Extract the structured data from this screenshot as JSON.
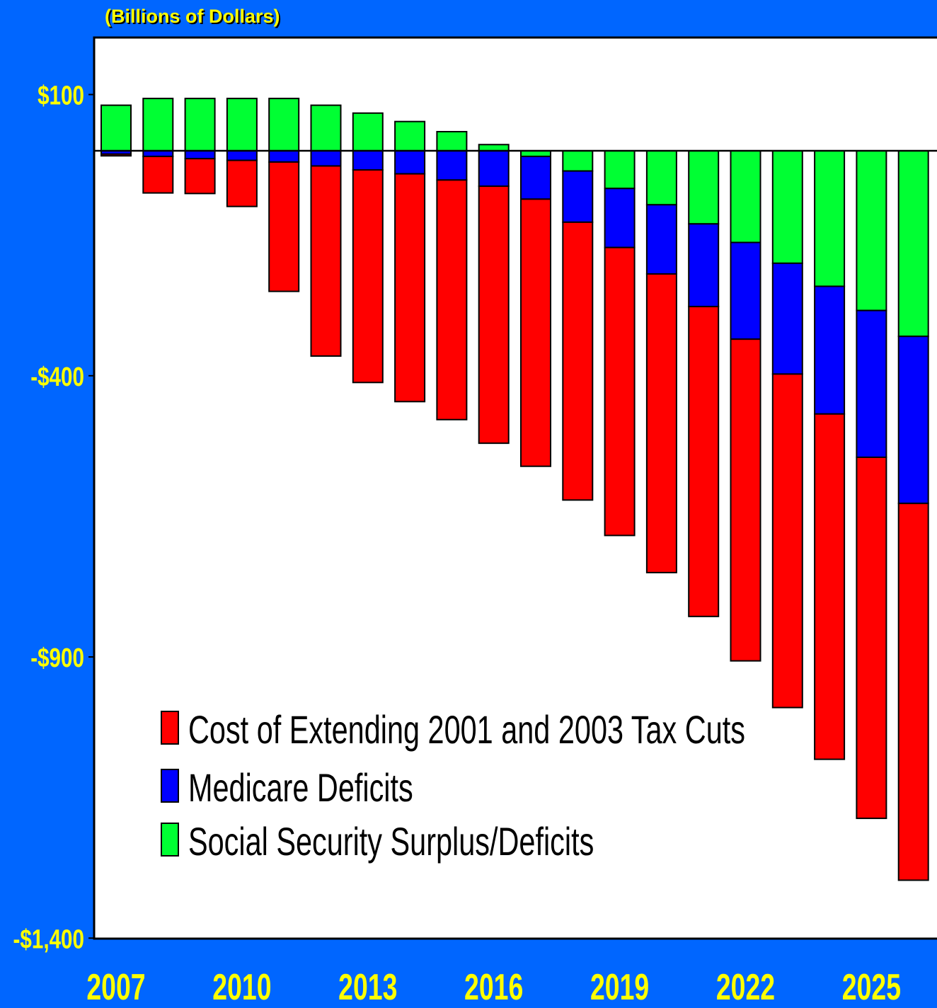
{
  "header": {
    "subtitle": "(Billions of Dollars)"
  },
  "chart_data": {
    "type": "bar",
    "stacked": true,
    "categories": [
      "2007",
      "2008",
      "2009",
      "2010",
      "2011",
      "2012",
      "2013",
      "2014",
      "2015",
      "2016",
      "2017",
      "2018",
      "2019",
      "2020",
      "2021",
      "2022",
      "2023",
      "2024",
      "2025",
      "2026"
    ],
    "x_tick_labels": [
      "2007",
      "2010",
      "2013",
      "2016",
      "2019",
      "2022",
      "2025"
    ],
    "series": [
      {
        "name": "Social Security Surplus/Deficits",
        "color": "#00FF33",
        "values": [
          81,
          93,
          93,
          93,
          93,
          81,
          67,
          52,
          34,
          11,
          -10,
          -36,
          -67,
          -96,
          -130,
          -163,
          -200,
          -241,
          -284,
          -330
        ]
      },
      {
        "name": "Medicare Deficits",
        "color": "#0000FF",
        "values": [
          -6,
          -10,
          -14,
          -17,
          -20,
          -27,
          -34,
          -41,
          -52,
          -63,
          -76,
          -91,
          -105,
          -123,
          -147,
          -172,
          -197,
          -227,
          -261,
          -297
        ]
      },
      {
        "name": "Cost of Extending 2001 and 2003 Tax Cuts",
        "color": "#FF0000",
        "values": [
          -3,
          -65,
          -62,
          -82,
          -230,
          -338,
          -378,
          -405,
          -426,
          -457,
          -475,
          -494,
          -512,
          -531,
          -551,
          -572,
          -593,
          -614,
          -642,
          -670
        ]
      }
    ],
    "y_tick_labels": [
      "$100",
      "-$400",
      "-$900",
      "-$1,400"
    ],
    "ylim": [
      -1400,
      200
    ],
    "grid": false,
    "legend_position": "bottom-left",
    "legend_order": [
      "Cost of Extending 2001 and 2003 Tax Cuts",
      "Medicare Deficits",
      "Social Security Surplus/Deficits"
    ],
    "plot_background": "#FFFFFF",
    "page_background": "#0066FF",
    "label_color": "#FFFF00"
  }
}
